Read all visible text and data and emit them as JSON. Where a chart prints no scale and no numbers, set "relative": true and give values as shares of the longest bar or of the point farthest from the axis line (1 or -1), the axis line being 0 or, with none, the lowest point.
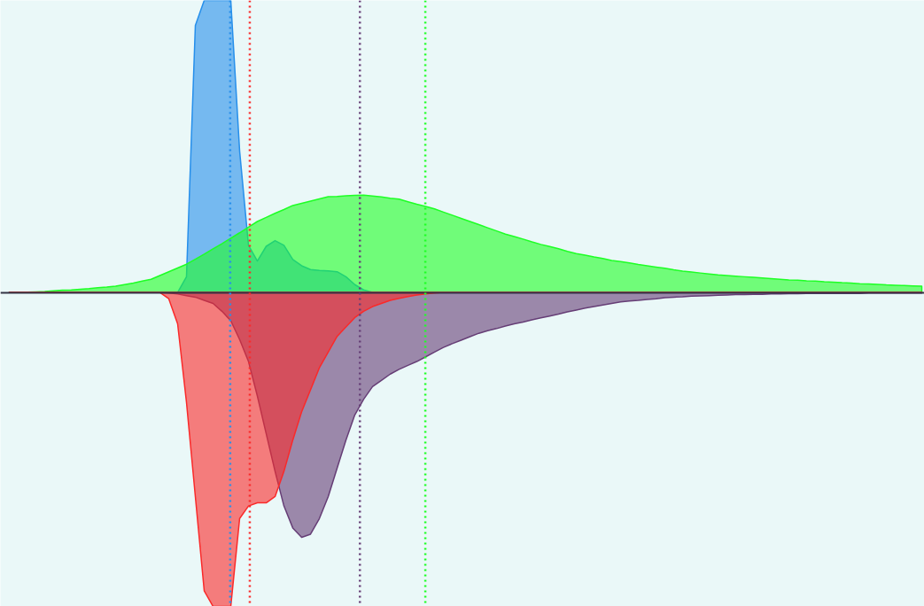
{
  "chart_data": {
    "type": "area",
    "relative": true,
    "grid": false,
    "categories": [
      null,
      null,
      null,
      null,
      null,
      null,
      null,
      null,
      null,
      null,
      null,
      null,
      null,
      null,
      null,
      null,
      null,
      null,
      null,
      null,
      null,
      null,
      null,
      null,
      null,
      null,
      null,
      null,
      null,
      null,
      null,
      null,
      null,
      null,
      null,
      null,
      null,
      null,
      null,
      null,
      null,
      null,
      null,
      null,
      null,
      null,
      null,
      null,
      null,
      null,
      null,
      null,
      null,
      null,
      null,
      null,
      null,
      null,
      null,
      null,
      null,
      null,
      null,
      null,
      null,
      null,
      null,
      null,
      null,
      null,
      null,
      null,
      null,
      null,
      null,
      null,
      null,
      null,
      null,
      null,
      null,
      null,
      null,
      null,
      null,
      null,
      null,
      null,
      null,
      null,
      null,
      null,
      null,
      null,
      null,
      null,
      null,
      null,
      null,
      null,
      null,
      null,
      null,
      null
    ],
    "series": [
      {
        "color": "#268feb",
        "values": [
          0,
          0,
          0,
          0,
          0,
          0,
          0,
          0,
          0,
          0,
          0,
          0,
          0,
          0,
          0,
          0,
          0,
          0,
          0,
          0,
          0.05,
          0.85,
          0.93,
          0.93,
          0.93,
          0.93,
          0.45,
          0.15,
          0.1,
          0.147,
          0.165,
          0.15,
          0.105,
          0.085,
          0.073,
          0.07,
          0.069,
          0.066,
          0.05,
          0.025,
          0.008,
          0,
          0,
          0,
          0,
          0,
          0,
          0,
          0,
          0,
          0,
          0,
          0,
          0,
          0,
          0,
          0,
          0,
          0,
          0,
          0,
          0,
          0,
          0,
          0,
          0,
          0,
          0,
          0,
          0,
          0,
          0,
          0,
          0,
          0,
          0,
          0,
          0,
          0,
          0,
          0,
          0,
          0,
          0,
          0,
          0,
          0,
          0,
          0,
          0,
          0,
          0,
          0,
          0,
          0,
          0,
          0,
          0,
          0,
          0,
          0,
          0,
          0,
          0
        ]
      },
      {
        "color": "#1eff25",
        "values": [
          0,
          0.001,
          0.001,
          0.002,
          0.003,
          0.005,
          0.007,
          0.008,
          0.01,
          0.012,
          0.015,
          0.017,
          0.02,
          0.025,
          0.03,
          0.036,
          0.042,
          0.054,
          0.066,
          0.078,
          0.09,
          0.106,
          0.122,
          0.139,
          0.155,
          0.173,
          0.19,
          0.208,
          0.226,
          0.239,
          0.252,
          0.264,
          0.277,
          0.284,
          0.291,
          0.298,
          0.305,
          0.306,
          0.308,
          0.309,
          0.31,
          0.307,
          0.304,
          0.3,
          0.297,
          0.289,
          0.281,
          0.274,
          0.266,
          0.256,
          0.246,
          0.236,
          0.226,
          0.216,
          0.206,
          0.196,
          0.186,
          0.178,
          0.17,
          0.161,
          0.153,
          0.146,
          0.139,
          0.131,
          0.124,
          0.119,
          0.113,
          0.108,
          0.102,
          0.098,
          0.094,
          0.089,
          0.085,
          0.081,
          0.077,
          0.072,
          0.068,
          0.065,
          0.062,
          0.059,
          0.056,
          0.054,
          0.052,
          0.05,
          0.048,
          0.046,
          0.044,
          0.042,
          0.04,
          0.039,
          0.037,
          0.036,
          0.034,
          0.033,
          0.031,
          0.03,
          0.028,
          0.027,
          0.026,
          0.024,
          0.023,
          0.022,
          0.021,
          0.02
        ]
      },
      {
        "color": "#663e76",
        "values": [
          0,
          0,
          0,
          0,
          0,
          0,
          0,
          0,
          0,
          0,
          0,
          0,
          0,
          0,
          0,
          0,
          0,
          0,
          -0.002,
          -0.005,
          -0.01,
          -0.015,
          -0.025,
          -0.035,
          -0.06,
          -0.09,
          -0.15,
          -0.22,
          -0.33,
          -0.45,
          -0.57,
          -0.68,
          -0.75,
          -0.78,
          -0.77,
          -0.72,
          -0.65,
          -0.56,
          -0.47,
          -0.39,
          -0.34,
          -0.3,
          -0.28,
          -0.26,
          -0.245,
          -0.232,
          -0.22,
          -0.205,
          -0.19,
          -0.175,
          -0.163,
          -0.152,
          -0.141,
          -0.13,
          -0.122,
          -0.115,
          -0.107,
          -0.1,
          -0.094,
          -0.087,
          -0.081,
          -0.075,
          -0.069,
          -0.062,
          -0.056,
          -0.05,
          -0.045,
          -0.04,
          -0.035,
          -0.03,
          -0.027,
          -0.025,
          -0.022,
          -0.02,
          -0.017,
          -0.015,
          -0.014,
          -0.012,
          -0.011,
          -0.01,
          -0.009,
          -0.008,
          -0.007,
          -0.007,
          -0.006,
          -0.006,
          -0.005,
          -0.005,
          -0.004,
          -0.004,
          -0.003,
          -0.003,
          -0.003,
          -0.003,
          -0.003,
          -0.003,
          -0.003,
          -0.002,
          -0.002,
          -0.002,
          -0.002,
          -0.002,
          -0.002,
          -0.002
        ]
      },
      {
        "color": "#fa2a2a",
        "values": [
          0,
          0,
          0,
          0,
          0,
          0,
          0,
          0,
          0,
          0,
          0,
          0,
          0,
          0,
          0,
          0,
          0,
          0,
          -0.02,
          -0.1,
          -0.35,
          -0.65,
          -0.95,
          -1,
          -1,
          -1,
          -0.72,
          -0.68,
          -0.67,
          -0.67,
          -0.65,
          -0.57,
          -0.47,
          -0.38,
          -0.31,
          -0.24,
          -0.19,
          -0.14,
          -0.11,
          -0.08,
          -0.06,
          -0.045,
          -0.035,
          -0.025,
          -0.019,
          -0.013,
          -0.008,
          -0.005,
          -0.002,
          0,
          0,
          0,
          0,
          0,
          0,
          0,
          0,
          0,
          0,
          0,
          0,
          0,
          0,
          0,
          0,
          0,
          0,
          0,
          0,
          0,
          0,
          0,
          0,
          0,
          0,
          0,
          0,
          0,
          0,
          0,
          0,
          0,
          0,
          0,
          0,
          0,
          0,
          0,
          0,
          0,
          0,
          0,
          0,
          0,
          0,
          0,
          0,
          0,
          0,
          0,
          0,
          0,
          0,
          0
        ]
      }
    ]
  }
}
